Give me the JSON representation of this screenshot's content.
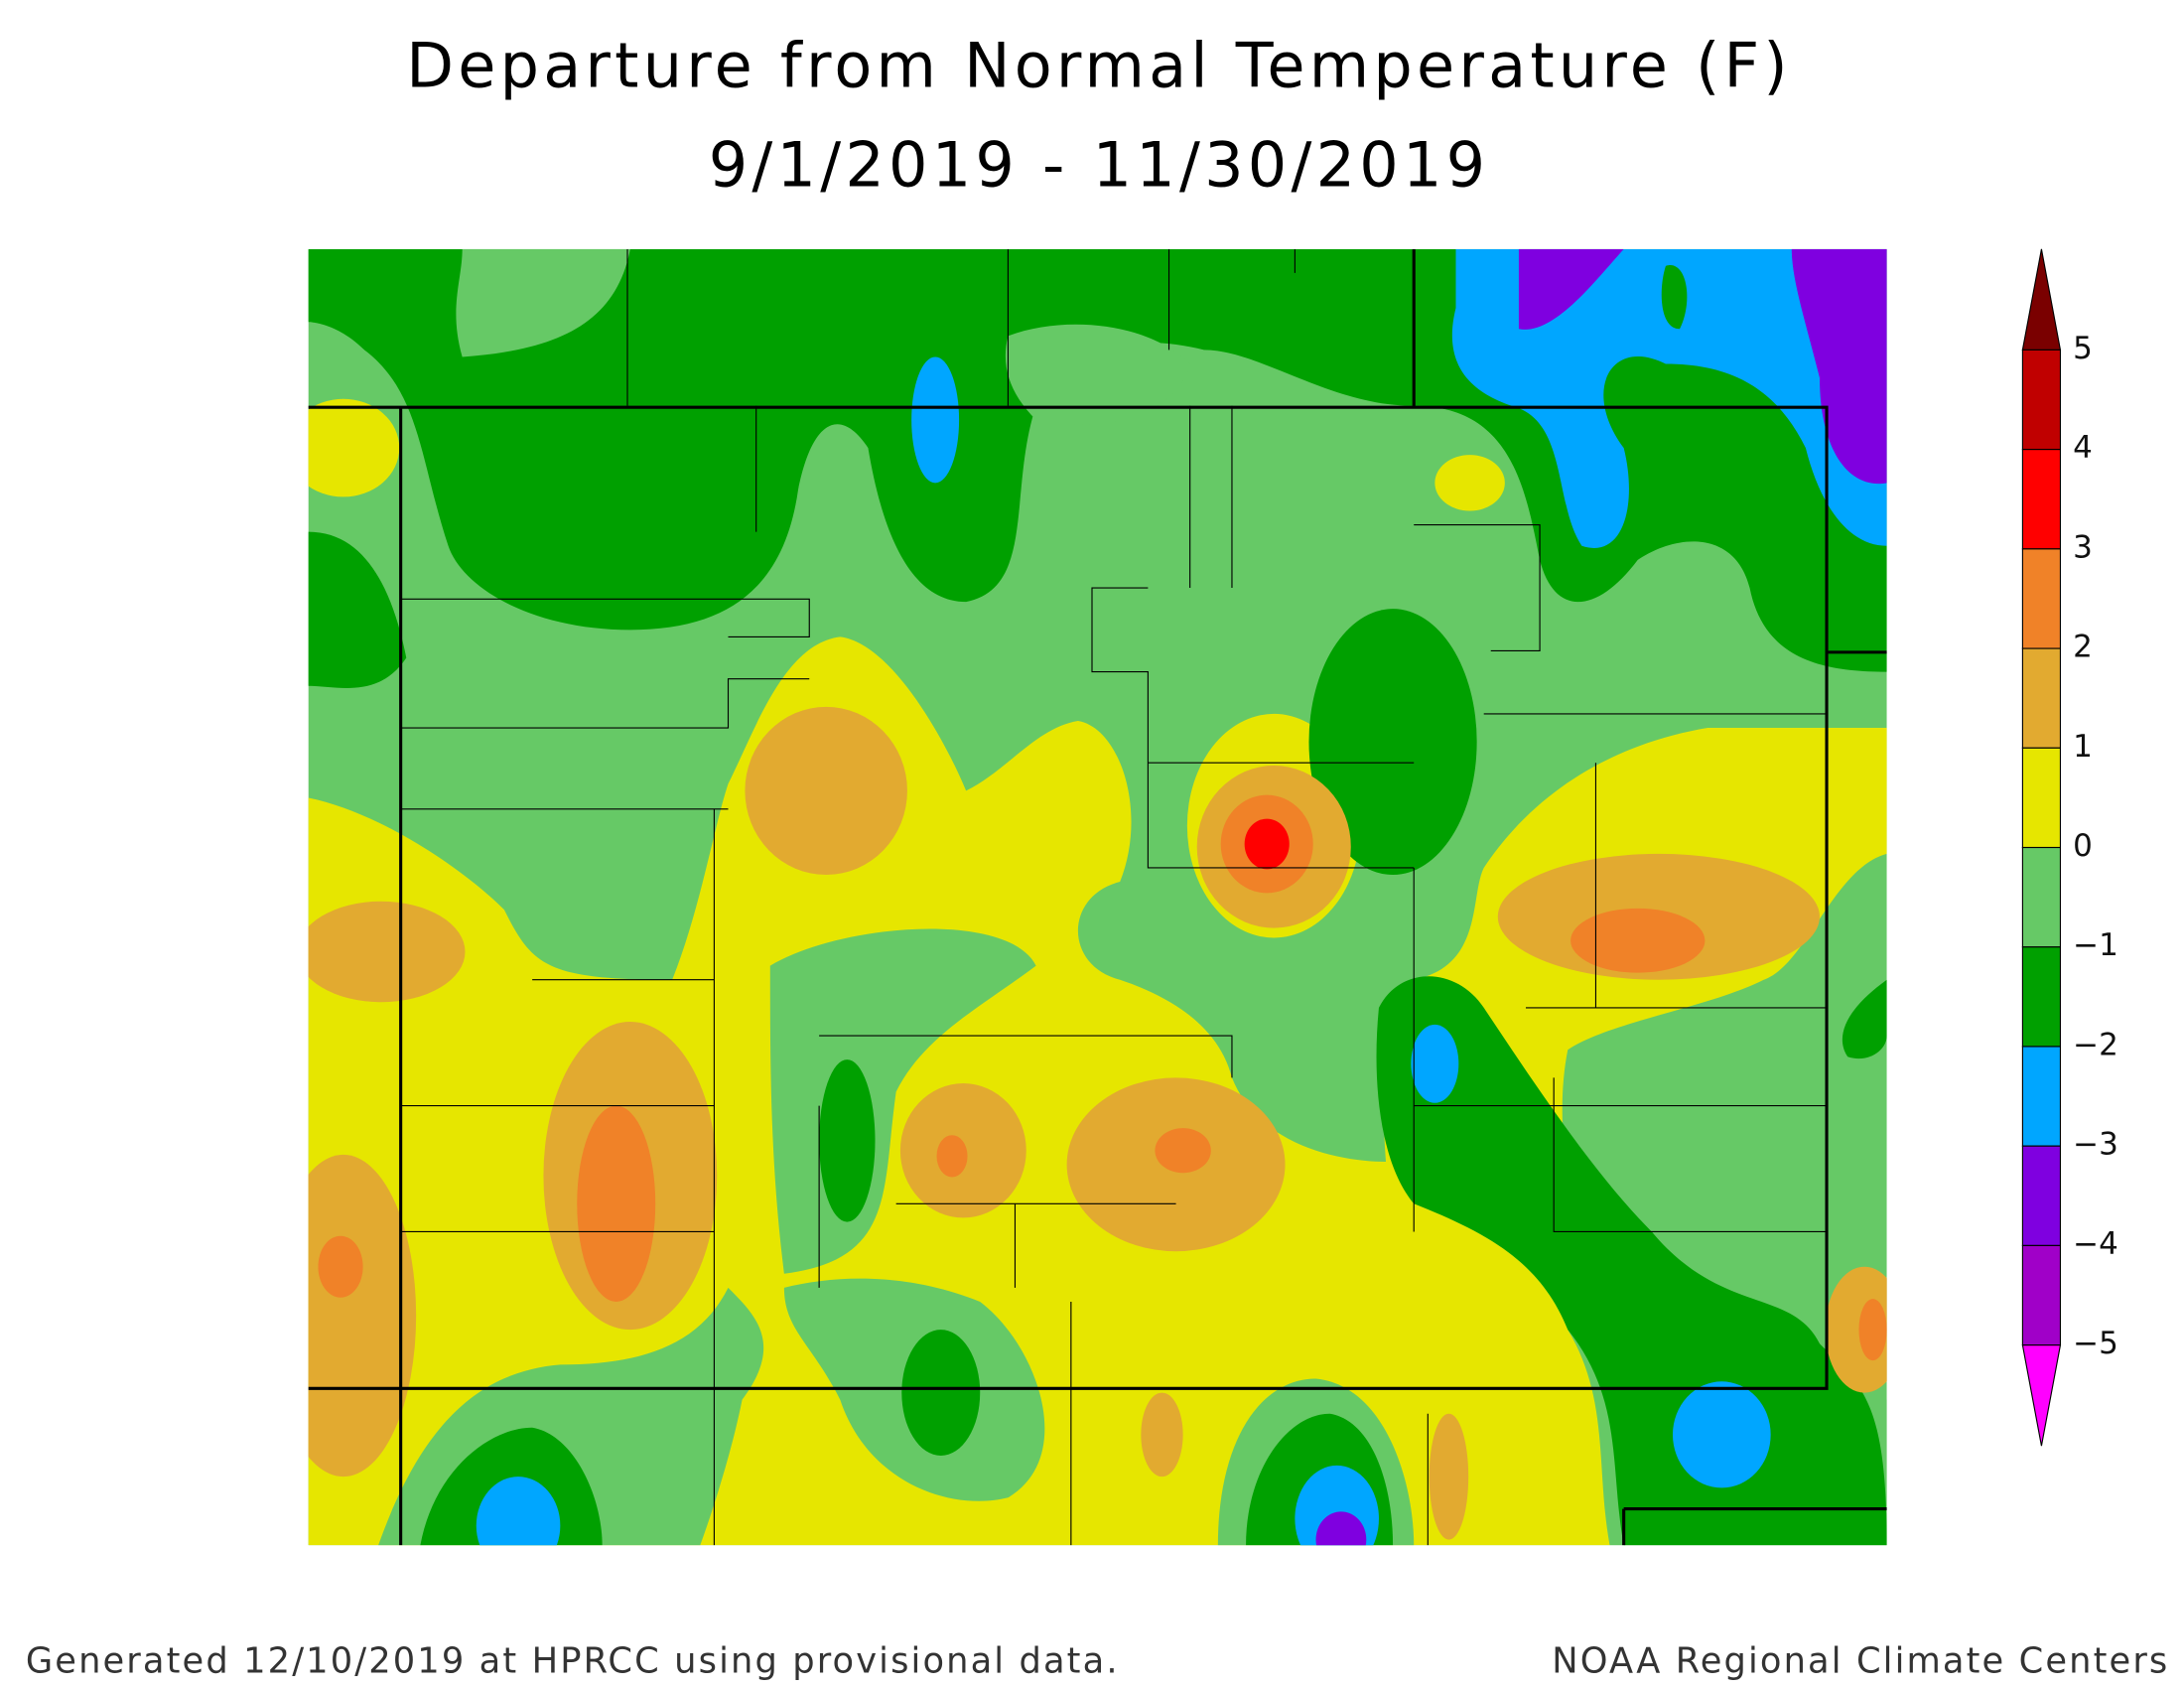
{
  "header": {
    "title": "Departure from Normal Temperature (F)",
    "subtitle": "9/1/2019 - 11/30/2019"
  },
  "legend": {
    "labels": [
      "5",
      "4",
      "3",
      "2",
      "1",
      "0",
      "−1",
      "−2",
      "−3",
      "−4",
      "−5"
    ],
    "colors": [
      "#7a0000",
      "#c00000",
      "#ff0000",
      "#f08228",
      "#e2aa30",
      "#e6e600",
      "#66c966",
      "#00a000",
      "#00a6ff",
      "#7f00e0",
      "#a000c8",
      "#ff00ff"
    ]
  },
  "footer": {
    "left": "Generated 12/10/2019 at HPRCC using provisional data.",
    "right": "NOAA Regional Climate Centers"
  }
}
